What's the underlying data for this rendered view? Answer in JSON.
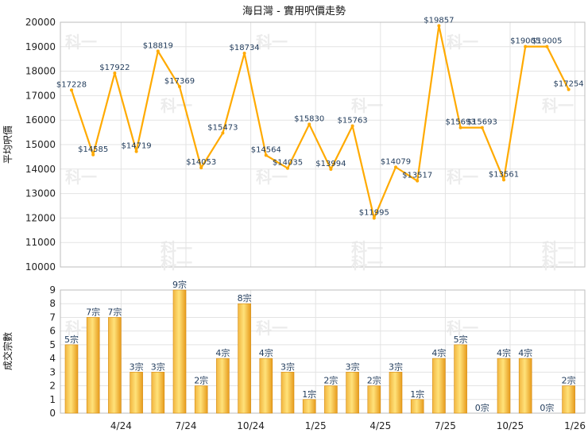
{
  "title": "海日灣 - 實用呎價走勢",
  "chart_data": [
    {
      "type": "line",
      "ylabel": "平均呎價",
      "ylim": [
        10000,
        20000
      ],
      "yticks": [
        10000,
        11000,
        12000,
        13000,
        14000,
        15000,
        16000,
        17000,
        18000,
        19000,
        20000
      ],
      "values": [
        17228,
        14585,
        17922,
        14719,
        18819,
        17369,
        14053,
        15473,
        18734,
        14564,
        14035,
        15830,
        13994,
        15763,
        11995,
        14079,
        13517,
        19857,
        15693,
        15693,
        13561,
        19005,
        19005,
        17254
      ],
      "value_labels": [
        "$17228",
        "$14585",
        "$17922",
        "$14719",
        "$18819",
        "$17369",
        "$14053",
        "$15473",
        "$18734",
        "$14564",
        "$14035",
        "$15830",
        "$13994",
        "$15763",
        "$11995",
        "$14079",
        "$13517",
        "$19857",
        "$15693",
        "$15693",
        "$13561",
        "$19005",
        "$19005",
        "$17254"
      ],
      "color": "#ffaa00",
      "grid": true
    },
    {
      "type": "bar",
      "ylabel": "成交宗數",
      "ylim": [
        0,
        9
      ],
      "yticks": [
        0,
        1,
        2,
        3,
        4,
        5,
        6,
        7,
        8,
        9
      ],
      "values": [
        5,
        7,
        7,
        3,
        3,
        9,
        2,
        4,
        8,
        4,
        3,
        1,
        2,
        3,
        2,
        3,
        1,
        4,
        5,
        0,
        4,
        4,
        0,
        2
      ],
      "value_labels": [
        "5宗",
        "7宗",
        "7宗",
        "3宗",
        "3宗",
        "9宗",
        "2宗",
        "4宗",
        "8宗",
        "4宗",
        "3宗",
        "1宗",
        "2宗",
        "3宗",
        "2宗",
        "3宗",
        "1宗",
        "4宗",
        "5宗",
        "0宗",
        "4宗",
        "4宗",
        "0宗",
        "2宗"
      ],
      "x_tick_labels": [
        "4/24",
        "7/24",
        "10/24",
        "1/25",
        "4/25",
        "7/25",
        "10/25",
        "1/26"
      ],
      "x_tick_index": [
        2,
        5,
        8,
        11,
        14,
        17,
        20,
        23
      ],
      "grid": true
    }
  ],
  "watermark": "科一"
}
